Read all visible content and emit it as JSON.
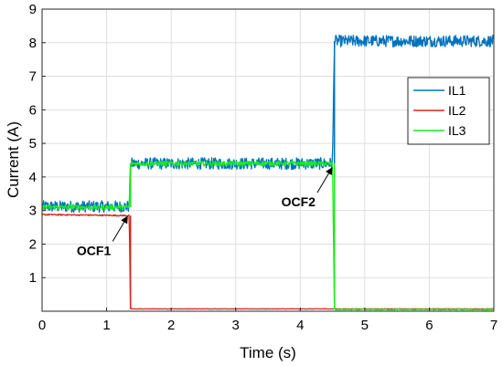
{
  "chart_data": {
    "type": "line",
    "title": "",
    "xlabel": "Time (s)",
    "ylabel": "Current (A)",
    "xlim": [
      0,
      7
    ],
    "ylim": [
      0,
      9
    ],
    "xticks": [
      0,
      1,
      2,
      3,
      4,
      5,
      6,
      7
    ],
    "yticks": [
      1,
      2,
      3,
      4,
      5,
      6,
      7,
      8,
      9
    ],
    "grid": true,
    "legend": {
      "placement": "right-middle"
    },
    "series": [
      {
        "name": "IL1",
        "color": "#0072BD",
        "points": [
          [
            0,
            3.12
          ],
          [
            1.35,
            3.12
          ],
          [
            1.37,
            4.4
          ],
          [
            4.5,
            4.4
          ],
          [
            4.53,
            8.05
          ],
          [
            7,
            8.05
          ]
        ],
        "noise": 0.35
      },
      {
        "name": "IL2",
        "color": "#D62718",
        "points": [
          [
            0,
            2.88
          ],
          [
            1.35,
            2.85
          ],
          [
            1.37,
            0.07
          ],
          [
            7,
            0.07
          ]
        ],
        "noise": 0.04
      },
      {
        "name": "IL3",
        "color": "#1BEB1B",
        "points": [
          [
            0,
            3.1
          ],
          [
            1.35,
            3.1
          ],
          [
            1.37,
            4.4
          ],
          [
            4.5,
            4.4
          ],
          [
            4.53,
            0.05
          ],
          [
            7,
            0.05
          ]
        ],
        "noise": 0.14
      }
    ],
    "annotations": [
      {
        "text": "OCF1",
        "x": 1.35,
        "y": 2.9
      },
      {
        "text": "OCF2",
        "x": 4.52,
        "y": 4.35
      }
    ]
  }
}
